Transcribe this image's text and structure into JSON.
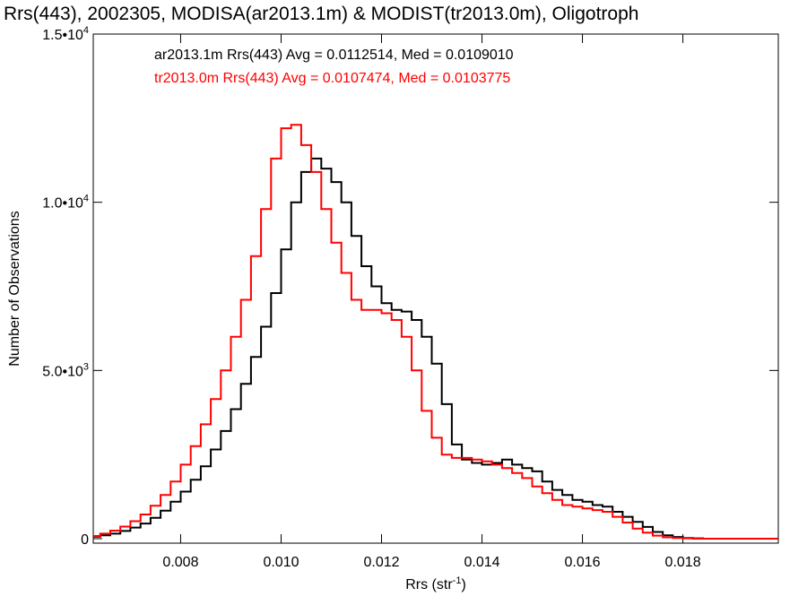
{
  "chart_data": {
    "type": "line",
    "title": "Rrs(443), 2002305, MODISA(ar2013.1m) & MODIST(tr2013.0m), Oligotroph",
    "xlabel": "Rrs (str",
    "xlabel_sup": "-1",
    "xlabel_close": ")",
    "ylabel": "Number of Observations",
    "xlim": [
      0.00626,
      0.0199
    ],
    "ylim": [
      0,
      15000
    ],
    "x_ticks": [
      0.008,
      0.01,
      0.012,
      0.014,
      0.016,
      0.018
    ],
    "x_tick_labels": [
      "0.008",
      "0.010",
      "0.012",
      "0.014",
      "0.016",
      "0.018"
    ],
    "y_ticks": [
      {
        "value": 0,
        "mantissa": "0",
        "exp": ""
      },
      {
        "value": 5000,
        "mantissa": "5.0•10",
        "exp": "3"
      },
      {
        "value": 10000,
        "mantissa": "1.0•10",
        "exp": "4"
      },
      {
        "value": 15000,
        "mantissa": "1.5•10",
        "exp": "4"
      }
    ],
    "grid": false,
    "legend_position": "top-left",
    "series": [
      {
        "name": "ar2013.1m Rrs(443)",
        "legend_text": "ar2013.1m Rrs(443) Avg = 0.0112514, Med = 0.0109010",
        "color": "#000000",
        "x": [
          0.0063,
          0.0065,
          0.0067,
          0.0069,
          0.0071,
          0.0073,
          0.0075,
          0.0077,
          0.0079,
          0.0081,
          0.0083,
          0.0085,
          0.0087,
          0.0089,
          0.0091,
          0.0093,
          0.0095,
          0.0097,
          0.0099,
          0.0101,
          0.0103,
          0.0105,
          0.0107,
          0.0109,
          0.0111,
          0.0113,
          0.0115,
          0.0117,
          0.0119,
          0.0121,
          0.0123,
          0.0125,
          0.0127,
          0.0129,
          0.0131,
          0.0133,
          0.0135,
          0.0137,
          0.0139,
          0.0141,
          0.0143,
          0.0145,
          0.0147,
          0.0149,
          0.0151,
          0.0153,
          0.0155,
          0.0157,
          0.0159,
          0.0161,
          0.0163,
          0.0165,
          0.0167,
          0.0169,
          0.0171,
          0.0173,
          0.0175,
          0.0177,
          0.0179,
          0.0181,
          0.0183,
          0.0185,
          0.0187,
          0.0189,
          0.0191,
          0.0193,
          0.0195,
          0.0197
        ],
        "values": [
          60,
          100,
          150,
          230,
          330,
          450,
          620,
          830,
          1100,
          1400,
          1750,
          2150,
          2650,
          3200,
          3850,
          4600,
          5400,
          6300,
          7300,
          8600,
          10000,
          10900,
          11300,
          11000,
          10600,
          10000,
          9000,
          8100,
          7500,
          7000,
          6800,
          6750,
          6500,
          6000,
          5200,
          4000,
          2800,
          2350,
          2250,
          2200,
          2250,
          2350,
          2200,
          2100,
          2000,
          1700,
          1450,
          1300,
          1150,
          1100,
          1000,
          950,
          800,
          650,
          500,
          350,
          200,
          100,
          50,
          20,
          10,
          0,
          0,
          0,
          0,
          0,
          0,
          0
        ]
      },
      {
        "name": "tr2013.0m Rrs(443)",
        "legend_text": "tr2013.0m Rrs(443) Avg = 0.0107474, Med = 0.0103775",
        "color": "#ff0000",
        "x": [
          0.0063,
          0.0065,
          0.0067,
          0.0069,
          0.0071,
          0.0073,
          0.0075,
          0.0077,
          0.0079,
          0.0081,
          0.0083,
          0.0085,
          0.0087,
          0.0089,
          0.0091,
          0.0093,
          0.0095,
          0.0097,
          0.0099,
          0.0101,
          0.0103,
          0.0105,
          0.0107,
          0.0109,
          0.0111,
          0.0113,
          0.0115,
          0.0117,
          0.0119,
          0.0121,
          0.0123,
          0.0125,
          0.0127,
          0.0129,
          0.0131,
          0.0133,
          0.0135,
          0.0137,
          0.0139,
          0.0141,
          0.0143,
          0.0145,
          0.0147,
          0.0149,
          0.0151,
          0.0153,
          0.0155,
          0.0157,
          0.0159,
          0.0161,
          0.0163,
          0.0165,
          0.0167,
          0.0169,
          0.0171,
          0.0173,
          0.0175,
          0.0177,
          0.0179,
          0.0181,
          0.0183,
          0.0185,
          0.0187,
          0.0189,
          0.0191,
          0.0193,
          0.0195,
          0.0197
        ],
        "values": [
          80,
          150,
          240,
          360,
          520,
          720,
          980,
          1300,
          1700,
          2200,
          2750,
          3400,
          4150,
          5000,
          6000,
          7100,
          8400,
          9800,
          11300,
          12200,
          12300,
          11700,
          10900,
          9800,
          8800,
          7900,
          7100,
          6800,
          6800,
          6700,
          6500,
          6000,
          5000,
          3800,
          3000,
          2500,
          2400,
          2400,
          2350,
          2300,
          2200,
          2100,
          1950,
          1800,
          1550,
          1350,
          1150,
          1000,
          950,
          900,
          850,
          800,
          650,
          480,
          300,
          180,
          90,
          40,
          20,
          10,
          0,
          0,
          0,
          0,
          0,
          0,
          0,
          0
        ]
      }
    ]
  }
}
